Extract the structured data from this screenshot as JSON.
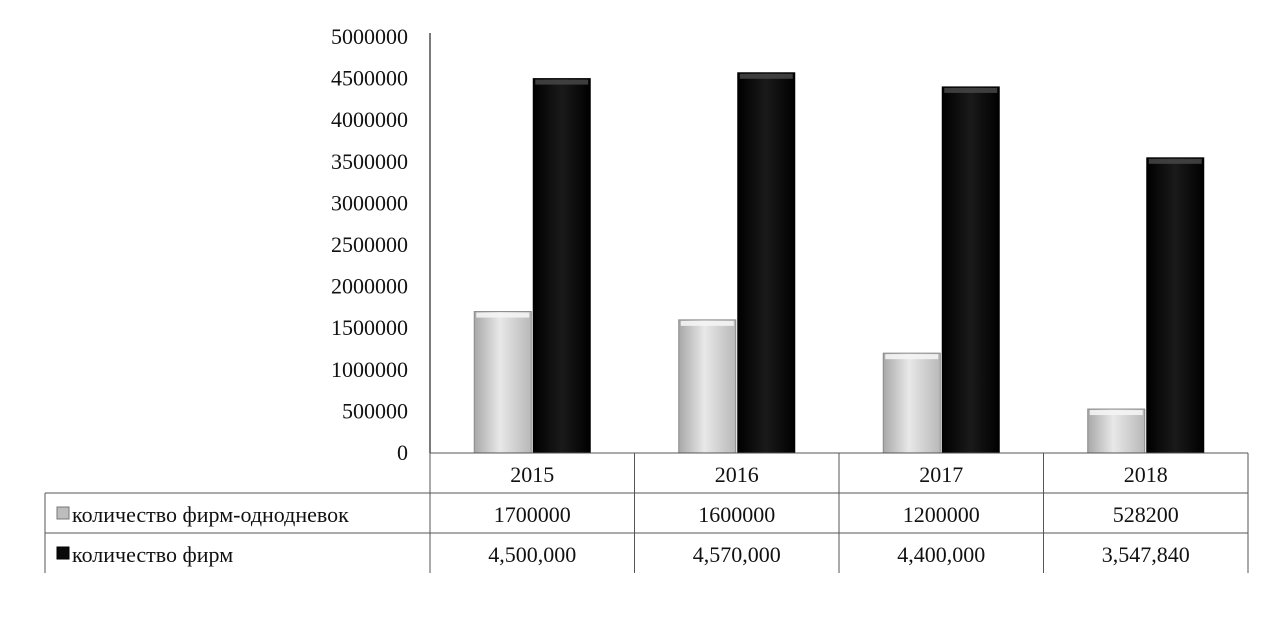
{
  "chart_data": {
    "type": "bar",
    "categories": [
      "2015",
      "2016",
      "2017",
      "2018"
    ],
    "ylim": [
      0,
      5000000
    ],
    "yticks": [
      0,
      500000,
      1000000,
      1500000,
      2000000,
      2500000,
      3000000,
      3500000,
      4000000,
      4500000,
      5000000
    ],
    "ytick_labels": [
      "0",
      "500000",
      "1000000",
      "1500000",
      "2000000",
      "2500000",
      "3000000",
      "3500000",
      "4000000",
      "4500000",
      "5000000"
    ],
    "series": [
      {
        "name": "количество фирм-однодневок",
        "values": [
          1700000,
          1600000,
          1200000,
          528200
        ],
        "labels": [
          "1700000",
          "1600000",
          "1200000",
          "528200"
        ],
        "color": "#c8c8c8"
      },
      {
        "name": "количество фирм",
        "values": [
          4500000,
          4570000,
          4400000,
          3547840
        ],
        "labels": [
          "4,500,000",
          "4,570,000",
          "4,400,000",
          "3,547,840"
        ],
        "color": "#0a0a0a"
      }
    ],
    "title": "",
    "xlabel": "",
    "ylabel": "",
    "grid": false,
    "legend": "data-table"
  }
}
